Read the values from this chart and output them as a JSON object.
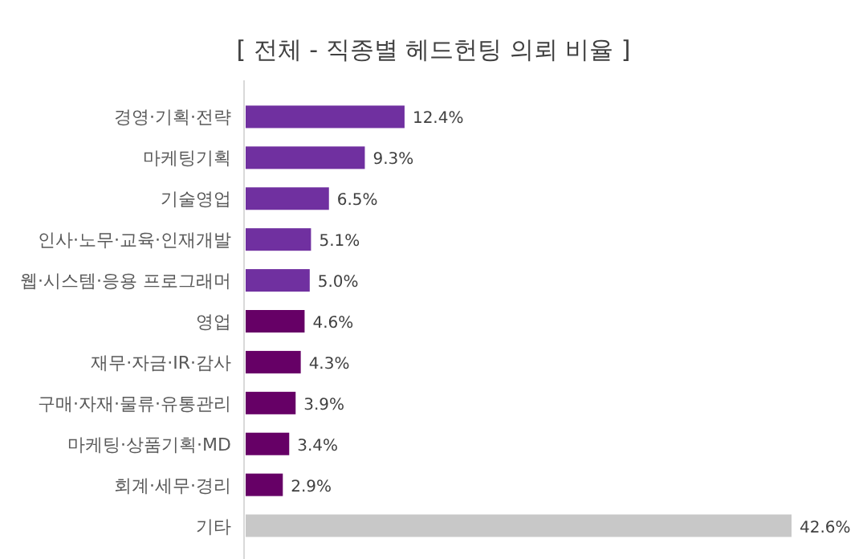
{
  "chart_data": {
    "type": "bar",
    "orientation": "horizontal",
    "title": "[ 전체 - 직종별 헤드헌팅 의뢰 비율 ]",
    "categories": [
      "경영·기획·전략",
      "마케팅기획",
      "기술영업",
      "인사·노무·교육·인재개발",
      "웹·시스템·응용 프로그래머",
      "영업",
      "재무·자금·IR·감사",
      "구매·자재·물류·유통관리",
      "마케팅·상품기획·MD",
      "회계·세무·경리",
      "기타"
    ],
    "values": [
      12.4,
      9.3,
      6.5,
      5.1,
      5.0,
      4.6,
      4.3,
      3.9,
      3.4,
      2.9,
      42.6
    ],
    "value_labels": [
      "12.4%",
      "9.3%",
      "6.5%",
      "5.1%",
      "5.0%",
      "4.6%",
      "4.3%",
      "3.9%",
      "3.4%",
      "2.9%",
      "42.6%"
    ],
    "colors": [
      "#7030a0",
      "#7030a0",
      "#7030a0",
      "#7030a0",
      "#7030a0",
      "#660066",
      "#660066",
      "#660066",
      "#660066",
      "#660066",
      "#c8c8c8"
    ]
  }
}
